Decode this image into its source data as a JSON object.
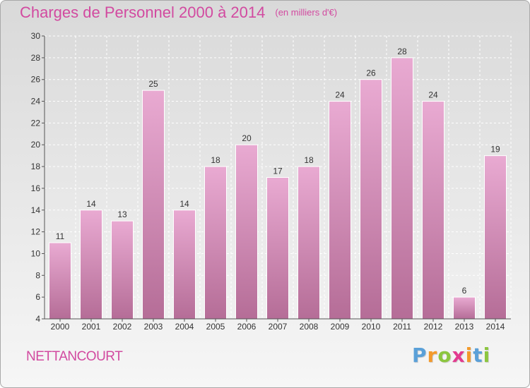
{
  "header": {
    "title": "Charges de Personnel 2000 à 2014",
    "subtitle": "(en milliers d'€)"
  },
  "footer": {
    "commune": "NETTANCOURT",
    "logo_text": "Proxiti"
  },
  "colors": {
    "bar_top": "#e9aad2",
    "bar_bottom": "#b56d97",
    "title": "#d24aa0",
    "logo_letters": [
      "#5aa0d8",
      "#f39a2b",
      "#8cc63f",
      "#e23b8f",
      "#f39a2b",
      "#5aa0d8",
      "#8cc63f"
    ]
  },
  "chart_data": {
    "type": "bar",
    "title": "Charges de Personnel 2000 à 2014",
    "subtitle": "(en milliers d'€)",
    "categories": [
      "2000",
      "2001",
      "2002",
      "2003",
      "2004",
      "2005",
      "2006",
      "2007",
      "2008",
      "2009",
      "2010",
      "2011",
      "2012",
      "2013",
      "2014"
    ],
    "values": [
      11,
      14,
      13,
      25,
      14,
      18,
      20,
      17,
      18,
      24,
      26,
      28,
      24,
      6,
      19
    ],
    "ylim": [
      4,
      30
    ],
    "yticks": [
      4,
      6,
      8,
      10,
      12,
      14,
      16,
      18,
      20,
      22,
      24,
      26,
      28,
      30
    ],
    "grid": true,
    "show_data_labels": true
  }
}
